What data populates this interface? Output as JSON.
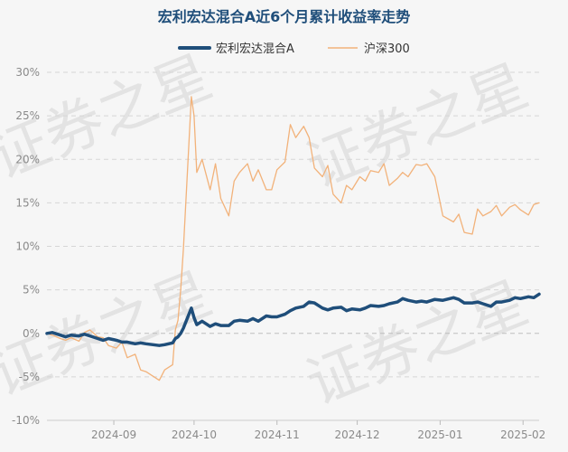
{
  "chart_data": {
    "type": "line",
    "title": "宏利宏达混合A近6个月累计收益率走势",
    "watermark": "证券之星",
    "colors": {
      "fund": "#1f4e7a",
      "index": "#f2b27a",
      "title": "#1f4e7a",
      "grid": "#d6d6d6",
      "tick": "#8a8a8a",
      "zero_line": "#bdbdbd",
      "background": "#f6f6f6",
      "watermark": "#e3e3e3"
    },
    "legend_position": "top-center",
    "grid": true,
    "ylim": [
      -10,
      30
    ],
    "y_ticks": [
      {
        "value": 30,
        "label": "30%"
      },
      {
        "value": 25,
        "label": "25%"
      },
      {
        "value": 20,
        "label": "20%"
      },
      {
        "value": 15,
        "label": "15%"
      },
      {
        "value": 10,
        "label": "10%"
      },
      {
        "value": 5,
        "label": "5%"
      },
      {
        "value": 0,
        "label": "0%"
      },
      {
        "value": -5,
        "label": "-5%"
      },
      {
        "value": -10,
        "label": "-10%"
      }
    ],
    "x_ticks": [
      {
        "date": "2024-09-01",
        "label": "2024-09"
      },
      {
        "date": "2024-10-01",
        "label": "2024-10"
      },
      {
        "date": "2024-11-01",
        "label": "2024-11"
      },
      {
        "date": "2024-12-01",
        "label": "2024-12"
      },
      {
        "date": "2025-01-01",
        "label": "2025-01"
      },
      {
        "date": "2025-02-01",
        "label": "2025-02"
      }
    ],
    "xlim": [
      "2024-08-07",
      "2025-02-07"
    ],
    "series": [
      {
        "name": "宏利宏达混合A",
        "color": "#1f4e7a",
        "points": [
          [
            "2024-08-07",
            0.0
          ],
          [
            "2024-08-09",
            0.1
          ],
          [
            "2024-08-12",
            -0.2
          ],
          [
            "2024-08-14",
            -0.4
          ],
          [
            "2024-08-16",
            -0.2
          ],
          [
            "2024-08-19",
            -0.3
          ],
          [
            "2024-08-21",
            -0.1
          ],
          [
            "2024-08-23",
            -0.3
          ],
          [
            "2024-08-26",
            -0.6
          ],
          [
            "2024-08-28",
            -0.8
          ],
          [
            "2024-08-30",
            -0.6
          ],
          [
            "2024-09-02",
            -0.8
          ],
          [
            "2024-09-04",
            -1.0
          ],
          [
            "2024-09-06",
            -1.0
          ],
          [
            "2024-09-09",
            -1.2
          ],
          [
            "2024-09-11",
            -1.1
          ],
          [
            "2024-09-13",
            -1.2
          ],
          [
            "2024-09-18",
            -1.4
          ],
          [
            "2024-09-20",
            -1.3
          ],
          [
            "2024-09-23",
            -1.1
          ],
          [
            "2024-09-24",
            -0.6
          ],
          [
            "2024-09-25",
            -0.4
          ],
          [
            "2024-09-26",
            0.0
          ],
          [
            "2024-09-27",
            0.6
          ],
          [
            "2024-09-30",
            2.9
          ],
          [
            "2024-10-01",
            1.8
          ],
          [
            "2024-10-02",
            1.0
          ],
          [
            "2024-10-04",
            1.4
          ],
          [
            "2024-10-07",
            0.8
          ],
          [
            "2024-10-09",
            1.1
          ],
          [
            "2024-10-11",
            0.9
          ],
          [
            "2024-10-14",
            0.9
          ],
          [
            "2024-10-16",
            1.4
          ],
          [
            "2024-10-18",
            1.5
          ],
          [
            "2024-10-21",
            1.4
          ],
          [
            "2024-10-23",
            1.7
          ],
          [
            "2024-10-25",
            1.4
          ],
          [
            "2024-10-28",
            2.0
          ],
          [
            "2024-10-30",
            1.9
          ],
          [
            "2024-11-01",
            1.9
          ],
          [
            "2024-11-04",
            2.2
          ],
          [
            "2024-11-06",
            2.6
          ],
          [
            "2024-11-08",
            2.9
          ],
          [
            "2024-11-11",
            3.1
          ],
          [
            "2024-11-13",
            3.6
          ],
          [
            "2024-11-15",
            3.5
          ],
          [
            "2024-11-18",
            2.9
          ],
          [
            "2024-11-20",
            2.7
          ],
          [
            "2024-11-22",
            2.9
          ],
          [
            "2024-11-25",
            3.0
          ],
          [
            "2024-11-27",
            2.6
          ],
          [
            "2024-11-29",
            2.8
          ],
          [
            "2024-12-02",
            2.7
          ],
          [
            "2024-12-04",
            2.9
          ],
          [
            "2024-12-06",
            3.2
          ],
          [
            "2024-12-09",
            3.1
          ],
          [
            "2024-12-11",
            3.2
          ],
          [
            "2024-12-13",
            3.4
          ],
          [
            "2024-12-16",
            3.6
          ],
          [
            "2024-12-18",
            4.0
          ],
          [
            "2024-12-20",
            3.8
          ],
          [
            "2024-12-23",
            3.6
          ],
          [
            "2024-12-25",
            3.7
          ],
          [
            "2024-12-27",
            3.6
          ],
          [
            "2024-12-30",
            3.9
          ],
          [
            "2025-01-02",
            3.8
          ],
          [
            "2025-01-06",
            4.1
          ],
          [
            "2025-01-08",
            3.9
          ],
          [
            "2025-01-10",
            3.5
          ],
          [
            "2025-01-13",
            3.5
          ],
          [
            "2025-01-15",
            3.6
          ],
          [
            "2025-01-17",
            3.4
          ],
          [
            "2025-01-20",
            3.1
          ],
          [
            "2025-01-22",
            3.6
          ],
          [
            "2025-01-24",
            3.6
          ],
          [
            "2025-01-27",
            3.8
          ],
          [
            "2025-01-29",
            4.1
          ],
          [
            "2025-01-31",
            4.0
          ],
          [
            "2025-02-03",
            4.2
          ],
          [
            "2025-02-05",
            4.1
          ],
          [
            "2025-02-07",
            4.5
          ]
        ]
      },
      {
        "name": "沪深300",
        "color": "#f2b27a",
        "points": [
          [
            "2024-08-07",
            0.0
          ],
          [
            "2024-08-09",
            -0.2
          ],
          [
            "2024-08-12",
            -0.6
          ],
          [
            "2024-08-14",
            -0.8
          ],
          [
            "2024-08-16",
            -0.5
          ],
          [
            "2024-08-19",
            -0.9
          ],
          [
            "2024-08-21",
            0.1
          ],
          [
            "2024-08-23",
            0.4
          ],
          [
            "2024-08-26",
            -0.4
          ],
          [
            "2024-08-28",
            -0.5
          ],
          [
            "2024-08-30",
            -1.4
          ],
          [
            "2024-09-02",
            -1.7
          ],
          [
            "2024-09-04",
            -1.0
          ],
          [
            "2024-09-06",
            -2.8
          ],
          [
            "2024-09-09",
            -2.4
          ],
          [
            "2024-09-11",
            -4.2
          ],
          [
            "2024-09-13",
            -4.4
          ],
          [
            "2024-09-18",
            -5.4
          ],
          [
            "2024-09-20",
            -4.2
          ],
          [
            "2024-09-23",
            -3.6
          ],
          [
            "2024-09-24",
            0.4
          ],
          [
            "2024-09-25",
            1.5
          ],
          [
            "2024-09-26",
            5.0
          ],
          [
            "2024-09-27",
            9.7
          ],
          [
            "2024-09-30",
            27.2
          ],
          [
            "2024-10-01",
            25.0
          ],
          [
            "2024-10-02",
            18.5
          ],
          [
            "2024-10-04",
            20.0
          ],
          [
            "2024-10-07",
            16.5
          ],
          [
            "2024-10-09",
            19.5
          ],
          [
            "2024-10-11",
            15.5
          ],
          [
            "2024-10-14",
            13.5
          ],
          [
            "2024-10-16",
            17.5
          ],
          [
            "2024-10-18",
            18.5
          ],
          [
            "2024-10-21",
            19.5
          ],
          [
            "2024-10-23",
            17.5
          ],
          [
            "2024-10-25",
            18.8
          ],
          [
            "2024-10-28",
            16.5
          ],
          [
            "2024-10-30",
            16.5
          ],
          [
            "2024-11-01",
            18.8
          ],
          [
            "2024-11-04",
            19.7
          ],
          [
            "2024-11-06",
            24.0
          ],
          [
            "2024-11-08",
            22.5
          ],
          [
            "2024-11-11",
            23.8
          ],
          [
            "2024-11-13",
            22.5
          ],
          [
            "2024-11-15",
            19.0
          ],
          [
            "2024-11-18",
            18.0
          ],
          [
            "2024-11-20",
            19.3
          ],
          [
            "2024-11-22",
            16.0
          ],
          [
            "2024-11-25",
            15.0
          ],
          [
            "2024-11-27",
            17.0
          ],
          [
            "2024-11-29",
            16.5
          ],
          [
            "2024-12-02",
            18.0
          ],
          [
            "2024-12-04",
            17.5
          ],
          [
            "2024-12-06",
            18.7
          ],
          [
            "2024-12-09",
            18.5
          ],
          [
            "2024-12-11",
            19.5
          ],
          [
            "2024-12-13",
            17.0
          ],
          [
            "2024-12-16",
            17.8
          ],
          [
            "2024-12-18",
            18.5
          ],
          [
            "2024-12-20",
            18.0
          ],
          [
            "2024-12-23",
            19.4
          ],
          [
            "2024-12-25",
            19.3
          ],
          [
            "2024-12-27",
            19.5
          ],
          [
            "2024-12-30",
            18.0
          ],
          [
            "2025-01-02",
            13.5
          ],
          [
            "2025-01-06",
            12.8
          ],
          [
            "2025-01-08",
            13.7
          ],
          [
            "2025-01-10",
            11.6
          ],
          [
            "2025-01-13",
            11.4
          ],
          [
            "2025-01-15",
            14.3
          ],
          [
            "2025-01-17",
            13.5
          ],
          [
            "2025-01-20",
            14.0
          ],
          [
            "2025-01-22",
            14.7
          ],
          [
            "2025-01-24",
            13.5
          ],
          [
            "2025-01-27",
            14.5
          ],
          [
            "2025-01-29",
            14.8
          ],
          [
            "2025-01-31",
            14.2
          ],
          [
            "2025-02-03",
            13.6
          ],
          [
            "2025-02-05",
            14.8
          ],
          [
            "2025-02-07",
            15.0
          ]
        ]
      }
    ]
  }
}
